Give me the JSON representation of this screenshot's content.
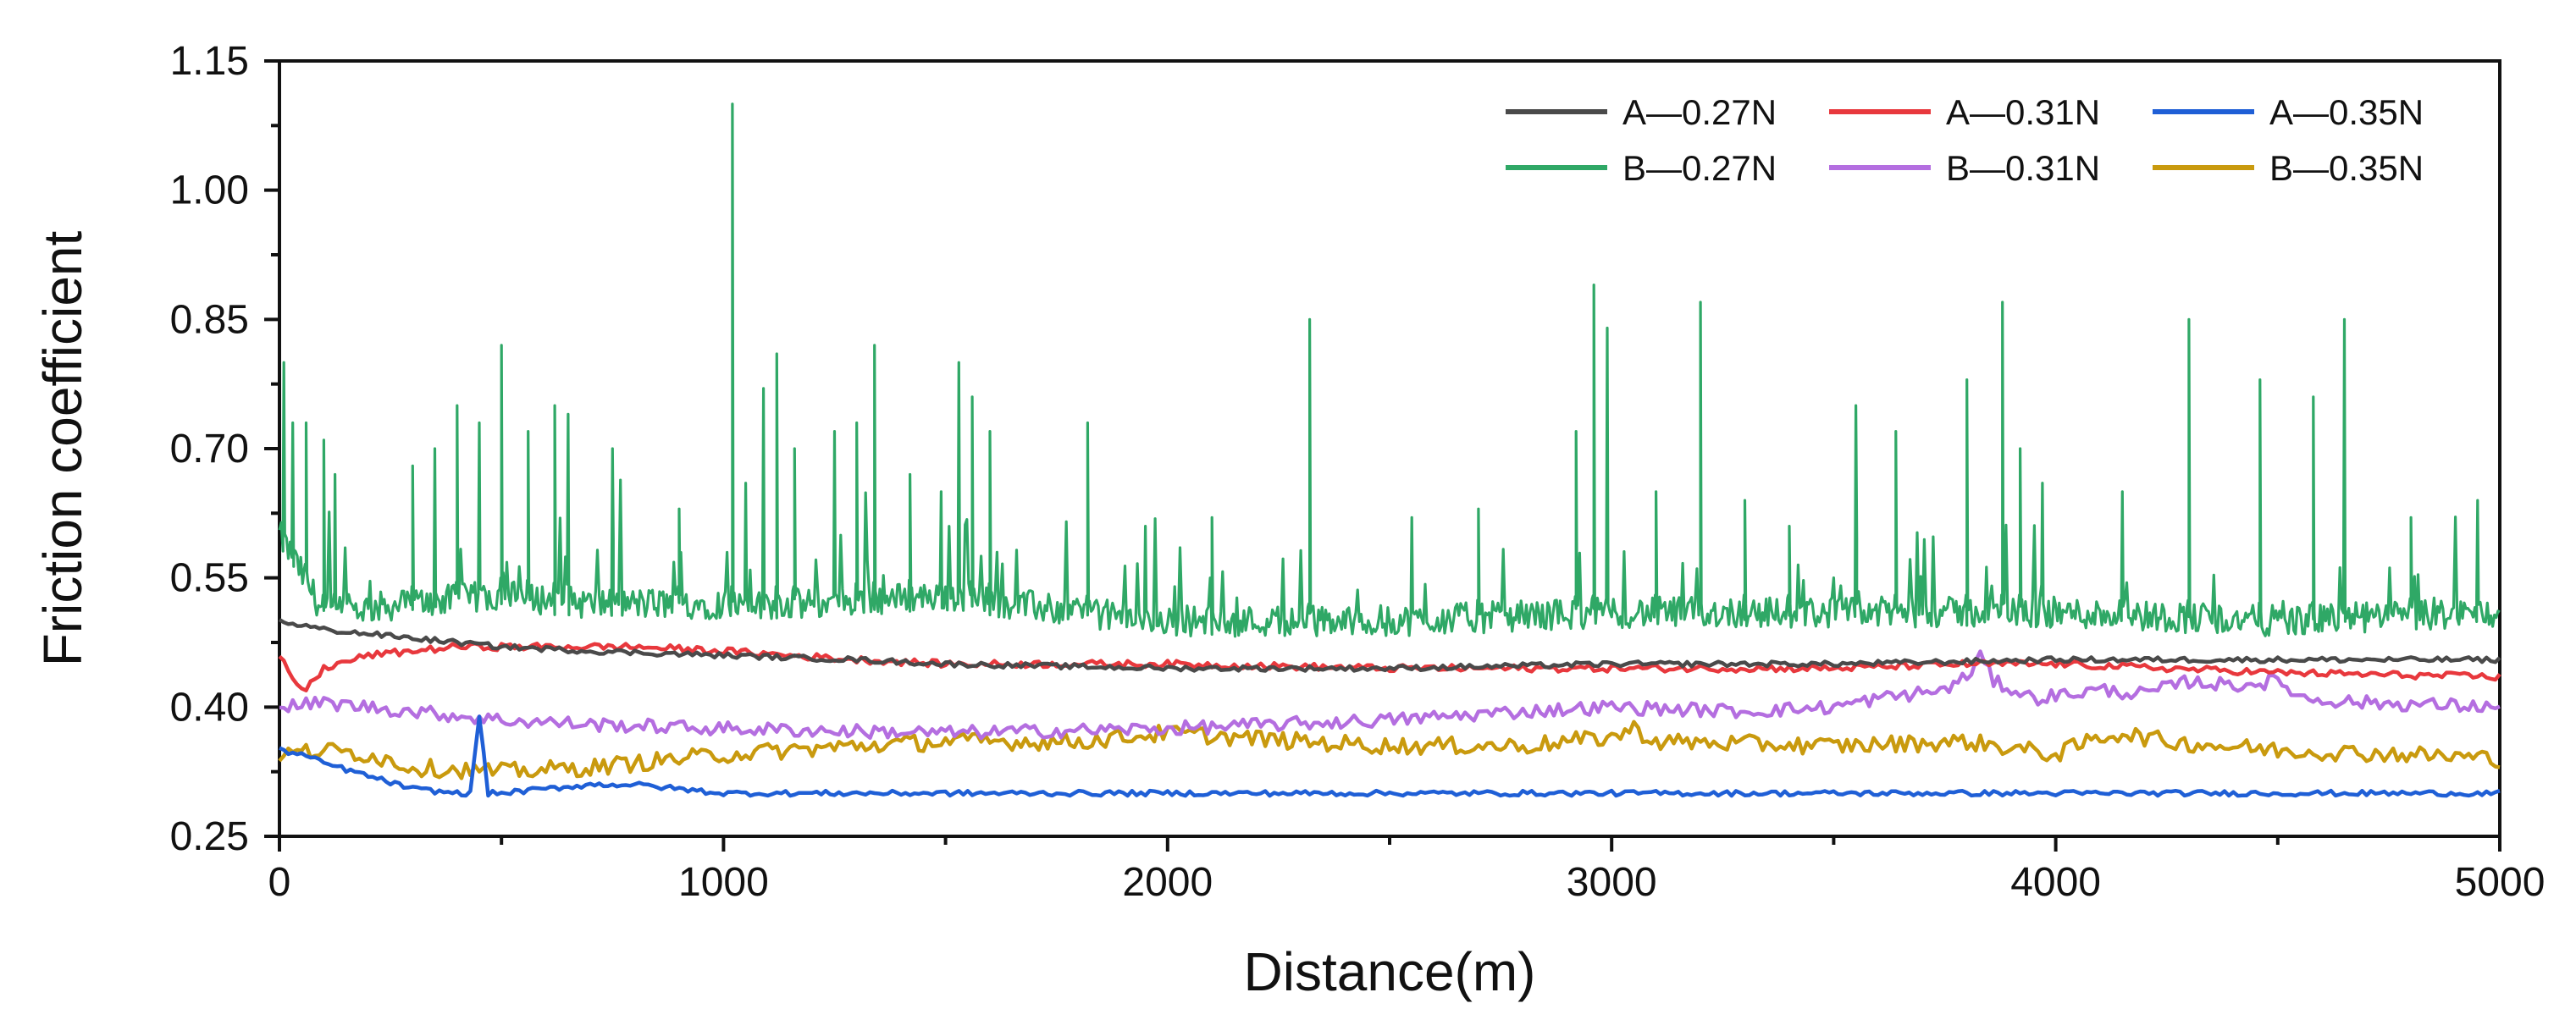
{
  "chart_data": {
    "type": "line",
    "title": "",
    "xlabel": "Distance(m)",
    "ylabel": "Friction coefficient",
    "xlim": [
      0,
      5000
    ],
    "ylim": [
      0.25,
      1.15
    ],
    "x_ticks": [
      0,
      1000,
      2000,
      3000,
      4000,
      5000
    ],
    "x_tick_labels": [
      "0",
      "1000",
      "2000",
      "3000",
      "4000",
      "5000"
    ],
    "y_ticks": [
      0.25,
      0.4,
      0.55,
      0.7,
      0.85,
      1.0,
      1.15
    ],
    "y_tick_labels": [
      "0.25",
      "0.40",
      "0.55",
      "0.70",
      "0.85",
      "1.00",
      "1.15"
    ],
    "legend_position": "top-right",
    "series": [
      {
        "name": "A—0.27N",
        "color": "#4a4a4a",
        "x": [
          0,
          50,
          100,
          200,
          300,
          400,
          500,
          700,
          1000,
          1300,
          1500,
          2000,
          2500,
          3000,
          3500,
          4000,
          4500,
          5000
        ],
        "values": [
          0.5,
          0.495,
          0.49,
          0.485,
          0.48,
          0.475,
          0.47,
          0.465,
          0.46,
          0.455,
          0.45,
          0.445,
          0.445,
          0.45,
          0.45,
          0.455,
          0.455,
          0.455
        ]
      },
      {
        "name": "A—0.31N",
        "color": "#e8383d",
        "x": [
          0,
          30,
          60,
          100,
          200,
          400,
          800,
          1000,
          1300,
          1500,
          2000,
          2500,
          3000,
          3500,
          3800,
          4000,
          4500,
          5000
        ],
        "values": [
          0.46,
          0.43,
          0.42,
          0.445,
          0.46,
          0.47,
          0.47,
          0.465,
          0.455,
          0.45,
          0.45,
          0.445,
          0.445,
          0.445,
          0.45,
          0.45,
          0.44,
          0.435
        ]
      },
      {
        "name": "A—0.35N",
        "color": "#1f5fd6",
        "x": [
          0,
          50,
          100,
          200,
          300,
          400,
          430,
          450,
          470,
          500,
          600,
          700,
          800,
          1000,
          1500,
          2000,
          3000,
          4000,
          5000
        ],
        "values": [
          0.35,
          0.345,
          0.335,
          0.32,
          0.305,
          0.3,
          0.3,
          0.39,
          0.3,
          0.3,
          0.305,
          0.31,
          0.31,
          0.3,
          0.3,
          0.3,
          0.3,
          0.3,
          0.3
        ]
      },
      {
        "name": "B—0.27N",
        "color": "#2fa866",
        "x": [
          0,
          100,
          300,
          500,
          700,
          1000,
          1200,
          1500,
          1800,
          2000,
          2300,
          2500,
          3000,
          3500,
          4000,
          4500,
          5000
        ],
        "values": [
          0.6,
          0.51,
          0.52,
          0.53,
          0.52,
          0.52,
          0.52,
          0.53,
          0.51,
          0.5,
          0.5,
          0.5,
          0.51,
          0.51,
          0.51,
          0.5,
          0.51
        ],
        "spikes": [
          [
            10,
            0.8
          ],
          [
            30,
            0.73
          ],
          [
            60,
            0.73
          ],
          [
            100,
            0.71
          ],
          [
            125,
            0.67
          ],
          [
            300,
            0.68
          ],
          [
            350,
            0.7
          ],
          [
            400,
            0.75
          ],
          [
            450,
            0.73
          ],
          [
            500,
            0.82
          ],
          [
            560,
            0.72
          ],
          [
            620,
            0.75
          ],
          [
            650,
            0.74
          ],
          [
            750,
            0.7
          ],
          [
            900,
            0.63
          ],
          [
            1020,
            1.1
          ],
          [
            1050,
            0.66
          ],
          [
            1090,
            0.77
          ],
          [
            1120,
            0.81
          ],
          [
            1160,
            0.7
          ],
          [
            1250,
            0.72
          ],
          [
            1300,
            0.73
          ],
          [
            1340,
            0.82
          ],
          [
            1420,
            0.67
          ],
          [
            1490,
            0.65
          ],
          [
            1530,
            0.8
          ],
          [
            1560,
            0.76
          ],
          [
            1600,
            0.72
          ],
          [
            1820,
            0.73
          ],
          [
            1950,
            0.61
          ],
          [
            2100,
            0.62
          ],
          [
            2320,
            0.85
          ],
          [
            2550,
            0.62
          ],
          [
            2700,
            0.63
          ],
          [
            2920,
            0.72
          ],
          [
            2960,
            0.89
          ],
          [
            2990,
            0.84
          ],
          [
            3100,
            0.65
          ],
          [
            3200,
            0.87
          ],
          [
            3300,
            0.64
          ],
          [
            3400,
            0.61
          ],
          [
            3550,
            0.75
          ],
          [
            3640,
            0.72
          ],
          [
            3800,
            0.78
          ],
          [
            3880,
            0.87
          ],
          [
            3920,
            0.7
          ],
          [
            3970,
            0.66
          ],
          [
            4150,
            0.65
          ],
          [
            4300,
            0.85
          ],
          [
            4460,
            0.78
          ],
          [
            4580,
            0.76
          ],
          [
            4650,
            0.85
          ],
          [
            4800,
            0.62
          ],
          [
            4950,
            0.64
          ]
        ]
      },
      {
        "name": "B—0.31N",
        "color": "#b46ee0",
        "x": [
          0,
          100,
          300,
          500,
          700,
          1000,
          1500,
          2000,
          2500,
          2800,
          3000,
          3300,
          3500,
          3600,
          3750,
          3800,
          3830,
          3860,
          3950,
          4100,
          4200,
          4300,
          4400,
          4500,
          4560,
          4700,
          5000
        ],
        "values": [
          0.4,
          0.405,
          0.395,
          0.385,
          0.38,
          0.375,
          0.37,
          0.375,
          0.385,
          0.395,
          0.4,
          0.395,
          0.4,
          0.41,
          0.42,
          0.435,
          0.46,
          0.43,
          0.41,
          0.42,
          0.415,
          0.43,
          0.425,
          0.43,
          0.41,
          0.405,
          0.4
        ]
      },
      {
        "name": "B—0.35N",
        "color": "#c99a0e",
        "x": [
          0,
          100,
          200,
          300,
          500,
          700,
          1000,
          1300,
          1500,
          1800,
          2000,
          2300,
          2500,
          2800,
          3000,
          3050,
          3100,
          3500,
          3800,
          4000,
          4100,
          4150,
          4250,
          4500,
          4800,
          5000
        ],
        "values": [
          0.345,
          0.35,
          0.345,
          0.33,
          0.325,
          0.33,
          0.345,
          0.355,
          0.36,
          0.36,
          0.37,
          0.36,
          0.355,
          0.355,
          0.365,
          0.375,
          0.36,
          0.355,
          0.36,
          0.345,
          0.365,
          0.37,
          0.36,
          0.35,
          0.345,
          0.34
        ]
      }
    ]
  }
}
